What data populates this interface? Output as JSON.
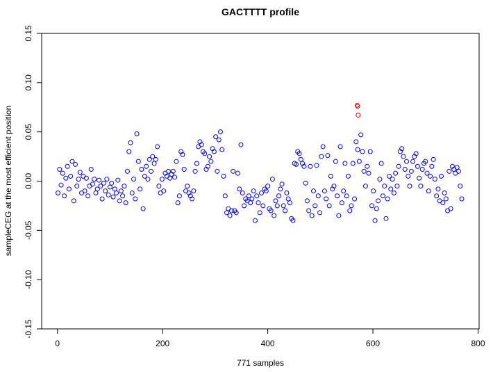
{
  "chart_data": {
    "type": "scatter",
    "title": "GACTTTT profile",
    "xlabel": "771 samples",
    "ylabel": "sampleCEG at the most efficient position",
    "xlim": [
      -30,
      802
    ],
    "ylim": [
      -0.15,
      0.15
    ],
    "xticks": [
      "0",
      "200",
      "400",
      "600",
      "800"
    ],
    "xtick_values": [
      0,
      200,
      400,
      600,
      800
    ],
    "yticks": [
      "-0.15",
      "-0.10",
      "-0.05",
      "0.00",
      "0.05",
      "0.10",
      "0.15"
    ],
    "ytick_values": [
      -0.15,
      -0.1,
      -0.05,
      0.0,
      0.05,
      0.1,
      0.15
    ],
    "grid": false,
    "marker": "open-circle",
    "series": [
      {
        "color": "#0000ff",
        "points": [
          [
            1,
            -0.012
          ],
          [
            4,
            0.012
          ],
          [
            7,
            -0.004
          ],
          [
            10,
            0.008
          ],
          [
            13,
            -0.015
          ],
          [
            16,
            0.003
          ],
          [
            19,
            0.015
          ],
          [
            22,
            -0.008
          ],
          [
            25,
            0.005
          ],
          [
            28,
            0.02
          ],
          [
            31,
            -0.02
          ],
          [
            34,
            0.017
          ],
          [
            37,
            -0.005
          ],
          [
            40,
            0.002
          ],
          [
            43,
            0.009
          ],
          [
            46,
            -0.012
          ],
          [
            49,
            0.005
          ],
          [
            52,
            -0.01
          ],
          [
            55,
            0.003
          ],
          [
            58,
            -0.015
          ],
          [
            61,
            -0.005
          ],
          [
            64,
            0.012
          ],
          [
            67,
            -0.003
          ],
          [
            70,
            0.002
          ],
          [
            73,
            -0.012
          ],
          [
            76,
            -0.008
          ],
          [
            79,
            0.001
          ],
          [
            82,
            -0.005
          ],
          [
            85,
            -0.018
          ],
          [
            88,
            -0.002
          ],
          [
            91,
            -0.01
          ],
          [
            94,
            0.002
          ],
          [
            97,
            -0.014
          ],
          [
            100,
            -0.006
          ],
          [
            103,
            -0.002
          ],
          [
            106,
            -0.016
          ],
          [
            109,
            -0.008
          ],
          [
            112,
            -0.012
          ],
          [
            115,
            0.001
          ],
          [
            118,
            -0.02
          ],
          [
            121,
            -0.01
          ],
          [
            124,
            -0.015
          ],
          [
            127,
            -0.005
          ],
          [
            130,
            -0.022
          ],
          [
            133,
            0.01
          ],
          [
            136,
            0.03
          ],
          [
            139,
            0.039
          ],
          [
            142,
            -0.012
          ],
          [
            145,
            0.002
          ],
          [
            148,
            -0.018
          ],
          [
            151,
            0.048
          ],
          [
            154,
            0.02
          ],
          [
            157,
            -0.008
          ],
          [
            160,
            0.012
          ],
          [
            163,
            -0.028
          ],
          [
            166,
            0.005
          ],
          [
            169,
            0.015
          ],
          [
            172,
            0.002
          ],
          [
            175,
            0.022
          ],
          [
            178,
            0.01
          ],
          [
            181,
            0.025
          ],
          [
            184,
            0.018
          ],
          [
            187,
            0.022
          ],
          [
            190,
            0.035
          ],
          [
            193,
            -0.005
          ],
          [
            196,
            -0.012
          ],
          [
            199,
            0.002
          ],
          [
            202,
            -0.01
          ],
          [
            205,
            0.008
          ],
          [
            208,
            0.005
          ],
          [
            211,
            0.01
          ],
          [
            214,
            0.003
          ],
          [
            217,
            0.007
          ],
          [
            220,
            0.01
          ],
          [
            223,
            0.004
          ],
          [
            226,
            0.02
          ],
          [
            229,
            -0.022
          ],
          [
            232,
            -0.015
          ],
          [
            235,
            0.03
          ],
          [
            238,
            0.027
          ],
          [
            241,
            0.012
          ],
          [
            244,
            -0.01
          ],
          [
            247,
            -0.005
          ],
          [
            250,
            -0.012
          ],
          [
            253,
            -0.015
          ],
          [
            256,
            -0.018
          ],
          [
            259,
            -0.01
          ],
          [
            262,
            0.01
          ],
          [
            265,
            0.018
          ],
          [
            268,
            0.035
          ],
          [
            271,
            0.04
          ],
          [
            274,
            0.037
          ],
          [
            277,
            0.03
          ],
          [
            280,
            0.028
          ],
          [
            283,
            0.012
          ],
          [
            286,
            0.015
          ],
          [
            289,
            0.025
          ],
          [
            292,
            0.02
          ],
          [
            295,
            0.033
          ],
          [
            298,
            0.03
          ],
          [
            301,
            0.045
          ],
          [
            304,
            0.01
          ],
          [
            307,
            0.042
          ],
          [
            310,
            0.05
          ],
          [
            313,
            0.032
          ],
          [
            316,
            0.005
          ],
          [
            319,
            -0.015
          ],
          [
            322,
            -0.032
          ],
          [
            325,
            -0.028
          ],
          [
            328,
            -0.035
          ],
          [
            331,
            -0.03
          ],
          [
            334,
            0.01
          ],
          [
            337,
            -0.03
          ],
          [
            340,
            -0.032
          ],
          [
            343,
            0.008
          ],
          [
            346,
            -0.008
          ],
          [
            349,
            0.037
          ],
          [
            352,
            -0.012
          ],
          [
            355,
            -0.025
          ],
          [
            358,
            -0.018
          ],
          [
            361,
            -0.02
          ],
          [
            364,
            -0.015
          ],
          [
            367,
            -0.022
          ],
          [
            370,
            -0.018
          ],
          [
            373,
            -0.01
          ],
          [
            376,
            -0.04
          ],
          [
            379,
            -0.015
          ],
          [
            382,
            -0.022
          ],
          [
            385,
            -0.032
          ],
          [
            388,
            -0.012
          ],
          [
            391,
            -0.025
          ],
          [
            394,
            -0.008
          ],
          [
            397,
            -0.01
          ],
          [
            400,
            -0.005
          ],
          [
            403,
            -0.028
          ],
          [
            406,
            -0.03
          ],
          [
            409,
            0.002
          ],
          [
            412,
            -0.035
          ],
          [
            415,
            -0.02
          ],
          [
            418,
            -0.025
          ],
          [
            421,
            -0.015
          ],
          [
            424,
            -0.008
          ],
          [
            427,
            -0.003
          ],
          [
            430,
            -0.025
          ],
          [
            433,
            -0.03
          ],
          [
            436,
            -0.012
          ],
          [
            439,
            -0.018
          ],
          [
            442,
            -0.022
          ],
          [
            445,
            -0.038
          ],
          [
            448,
            -0.04
          ],
          [
            451,
            0.018
          ],
          [
            454,
            0.017
          ],
          [
            457,
            0.03
          ],
          [
            460,
            0.028
          ],
          [
            463,
            0.022
          ],
          [
            466,
            0.018
          ],
          [
            469,
            0.015
          ],
          [
            472,
            -0.002
          ],
          [
            475,
            -0.02
          ],
          [
            478,
            -0.03
          ],
          [
            481,
            0.015
          ],
          [
            484,
            -0.035
          ],
          [
            487,
            -0.01
          ],
          [
            490,
            -0.025
          ],
          [
            493,
            0.016
          ],
          [
            496,
            -0.015
          ],
          [
            499,
            -0.032
          ],
          [
            502,
            0.025
          ],
          [
            505,
            0.035
          ],
          [
            508,
            -0.01
          ],
          [
            511,
            -0.018
          ],
          [
            514,
            0.026
          ],
          [
            517,
            -0.025
          ],
          [
            520,
            0.005
          ],
          [
            523,
            -0.008
          ],
          [
            526,
            -0.005
          ],
          [
            529,
            0.02
          ],
          [
            532,
            -0.015
          ],
          [
            535,
            -0.035
          ],
          [
            538,
            0.035
          ],
          [
            541,
            -0.022
          ],
          [
            544,
            -0.01
          ],
          [
            547,
            0.018
          ],
          [
            550,
            -0.015
          ],
          [
            553,
            0.005
          ],
          [
            556,
            -0.03
          ],
          [
            559,
            -0.025
          ],
          [
            562,
            0.018
          ],
          [
            565,
            -0.018
          ],
          [
            568,
            0.04
          ],
          [
            571,
            0.032
          ],
          [
            574,
            0.02
          ],
          [
            577,
            0.047
          ],
          [
            580,
            0.03
          ],
          [
            583,
            0.01
          ],
          [
            586,
            -0.005
          ],
          [
            589,
            0.015
          ],
          [
            592,
            0.008
          ],
          [
            595,
            0.03
          ],
          [
            598,
            -0.025
          ],
          [
            601,
            -0.01
          ],
          [
            604,
            -0.04
          ],
          [
            607,
            -0.028
          ],
          [
            610,
            -0.02
          ],
          [
            613,
            0.002
          ],
          [
            616,
            0.018
          ],
          [
            619,
            -0.015
          ],
          [
            622,
            -0.005
          ],
          [
            625,
            -0.038
          ],
          [
            628,
            -0.018
          ],
          [
            631,
            0.005
          ],
          [
            634,
            -0.008
          ],
          [
            637,
            0.002
          ],
          [
            640,
            -0.012
          ],
          [
            643,
            0.008
          ],
          [
            646,
            -0.005
          ],
          [
            649,
            0.015
          ],
          [
            652,
            0.03
          ],
          [
            655,
            0.033
          ],
          [
            658,
            0.025
          ],
          [
            661,
            0.012
          ],
          [
            664,
            0.02
          ],
          [
            667,
            0.005
          ],
          [
            670,
            -0.005
          ],
          [
            673,
            0.01
          ],
          [
            676,
            0.02
          ],
          [
            679,
            0.025
          ],
          [
            682,
            0.028
          ],
          [
            685,
            0.015
          ],
          [
            688,
            0.003
          ],
          [
            691,
            -0.005
          ],
          [
            694,
            0.012
          ],
          [
            697,
            0.018
          ],
          [
            700,
            0.02
          ],
          [
            703,
            0.008
          ],
          [
            706,
            -0.01
          ],
          [
            709,
            0.005
          ],
          [
            712,
            0.015
          ],
          [
            715,
            0.022
          ],
          [
            718,
            0.002
          ],
          [
            721,
            -0.015
          ],
          [
            724,
            -0.008
          ],
          [
            727,
            -0.02
          ],
          [
            730,
            0.005
          ],
          [
            733,
            -0.022
          ],
          [
            736,
            -0.012
          ],
          [
            739,
            -0.018
          ],
          [
            742,
            -0.03
          ],
          [
            745,
            0.01
          ],
          [
            748,
            -0.028
          ],
          [
            751,
            0.015
          ],
          [
            754,
            0.012
          ],
          [
            757,
            0.008
          ],
          [
            760,
            0.014
          ],
          [
            763,
            0.01
          ],
          [
            766,
            -0.005
          ],
          [
            769,
            -0.018
          ]
        ]
      },
      {
        "color": "#ff0000",
        "points": [
          [
            570,
            0.077
          ],
          [
            571,
            0.076
          ],
          [
            572,
            0.067
          ]
        ]
      }
    ]
  }
}
